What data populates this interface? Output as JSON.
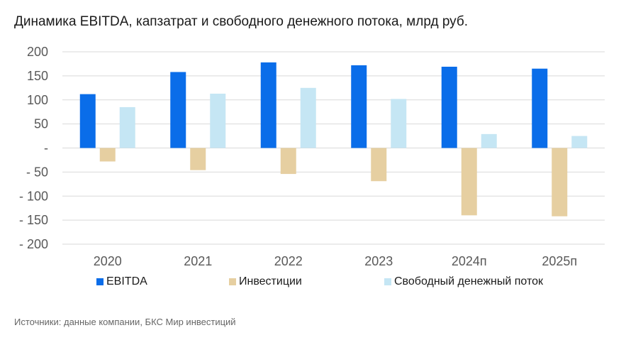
{
  "title": "Динамика EBITDA, капзатрат и свободного денежного потока, млрд руб.",
  "source": "Источники: данные компании, БКС Мир инвестиций",
  "colors": {
    "ebitda": "#0a6de9",
    "capex": "#e6cfa1",
    "fcf": "#c5e6f4",
    "grid": "#d9d9d9",
    "axis_text": "#595959"
  },
  "chart_data": {
    "type": "bar",
    "categories": [
      "2020",
      "2021",
      "2022",
      "2023",
      "2024п",
      "2025п"
    ],
    "series": [
      {
        "name": "EBITDA",
        "values": [
          112,
          158,
          178,
          172,
          169,
          165
        ]
      },
      {
        "name": "Инвестиции",
        "values": [
          -28,
          -46,
          -54,
          -69,
          -140,
          -142
        ]
      },
      {
        "name": "Свободный денежный поток",
        "values": [
          85,
          113,
          125,
          102,
          29,
          25
        ]
      }
    ],
    "yticks": [
      "200",
      "150",
      "100",
      "50",
      "-",
      "- 50",
      "- 100",
      "- 150",
      "- 200"
    ],
    "ylim": [
      -200,
      200
    ],
    "grid": true,
    "legend_position": "bottom"
  }
}
